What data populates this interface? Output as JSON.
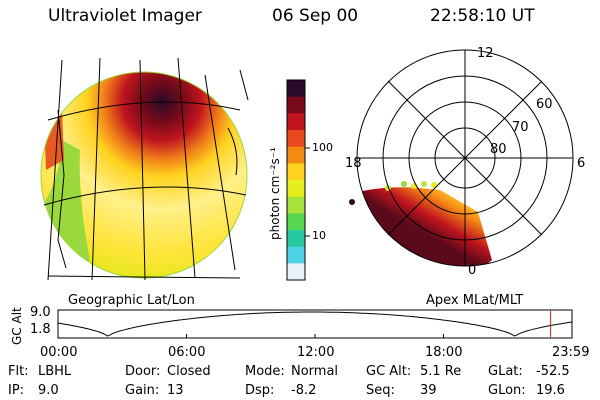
{
  "header": {
    "instrument": "Ultraviolet Imager",
    "date": "06 Sep 00",
    "time": "22:58:10 UT"
  },
  "colorbar": {
    "unit_label": "photon cm⁻²s⁻¹",
    "ticks": [
      "100",
      "10"
    ],
    "colors": [
      "#2a0a28",
      "#7a0a1a",
      "#c0141e",
      "#e84a1e",
      "#f58a14",
      "#ffd21e",
      "#e6ee1e",
      "#a8e23c",
      "#58d850",
      "#28c8a0",
      "#50d2e6",
      "#e6f2f8"
    ]
  },
  "left_panel": {
    "caption": "Geographic Lat/Lon"
  },
  "right_panel": {
    "caption": "Apex MLat/MLT",
    "mlt_labels": [
      "12",
      "18",
      "6",
      "0"
    ],
    "lat_labels": [
      "60",
      "70",
      "80"
    ]
  },
  "altitude_plot": {
    "axis_label": "GC Alt",
    "y_ticks": [
      "9.0",
      "1.8"
    ],
    "x_ticks": [
      "00:00",
      "06:00",
      "12:00",
      "18:00",
      "23:59"
    ],
    "marker_hour": 23.0
  },
  "status": {
    "flt_label": "Flt:",
    "flt_value": "LBHL",
    "ip_label": "IP:",
    "ip_value": "9.0",
    "door_label": "Door:",
    "door_value": "Closed",
    "gain_label": "Gain:",
    "gain_value": "13",
    "mode_label": "Mode:",
    "mode_value": "Normal",
    "dsp_label": "Dsp:",
    "dsp_value": "-8.2",
    "gcalt_label": "GC Alt:",
    "gcalt_value": "5.1 Re",
    "seq_label": "Seq:",
    "seq_value": "39",
    "glat_label": "GLat:",
    "glat_value": "-52.5",
    "glon_label": "GLon:",
    "glon_value": "19.6"
  }
}
